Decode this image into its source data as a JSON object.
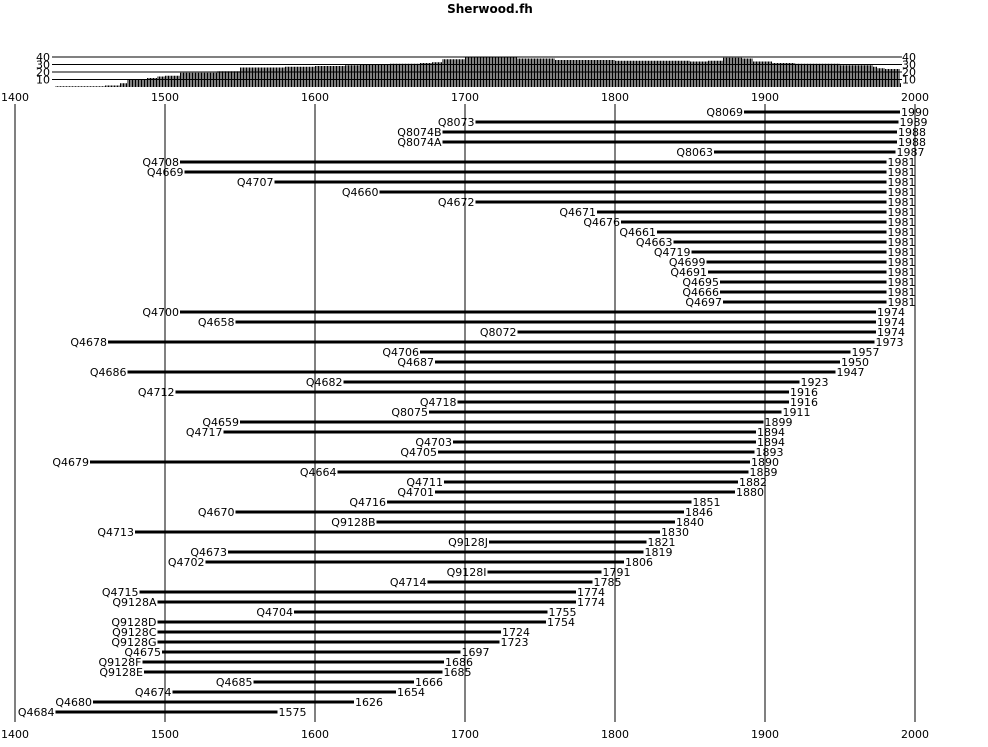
{
  "chart_data": {
    "type": "bar",
    "title": "Sherwood.fh",
    "xlim": [
      1400,
      2000
    ],
    "x_ticks": [
      1400,
      1500,
      1600,
      1700,
      1800,
      1900,
      2000
    ],
    "histogram": {
      "ylim": [
        0,
        40
      ],
      "y_ticks": [
        10,
        20,
        30,
        40
      ],
      "breakpoints": [
        [
          1427,
          1
        ],
        [
          1450,
          1
        ],
        [
          1460,
          2
        ],
        [
          1470,
          5
        ],
        [
          1475,
          10
        ],
        [
          1488,
          12
        ],
        [
          1495,
          14
        ],
        [
          1500,
          15
        ],
        [
          1510,
          19
        ],
        [
          1535,
          21
        ],
        [
          1550,
          26
        ],
        [
          1580,
          27
        ],
        [
          1600,
          28
        ],
        [
          1620,
          29
        ],
        [
          1630,
          30
        ],
        [
          1650,
          31
        ],
        [
          1670,
          32
        ],
        [
          1678,
          33
        ],
        [
          1685,
          37
        ],
        [
          1700,
          40
        ],
        [
          1720,
          40
        ],
        [
          1735,
          38
        ],
        [
          1760,
          36
        ],
        [
          1800,
          35
        ],
        [
          1850,
          34
        ],
        [
          1862,
          35
        ],
        [
          1872,
          39
        ],
        [
          1885,
          38
        ],
        [
          1892,
          34
        ],
        [
          1905,
          32
        ],
        [
          1920,
          31
        ],
        [
          1950,
          29
        ],
        [
          1972,
          27
        ],
        [
          1975,
          25
        ],
        [
          1980,
          24
        ],
        [
          1990,
          5
        ],
        [
          1991,
          0
        ]
      ]
    },
    "series": [
      {
        "label": "Q8069",
        "start": 1886,
        "end": 1990
      },
      {
        "label": "Q8073",
        "start": 1707,
        "end": 1989
      },
      {
        "label": "Q8074B",
        "start": 1685,
        "end": 1988
      },
      {
        "label": "Q8074A",
        "start": 1685,
        "end": 1988
      },
      {
        "label": "Q8063",
        "start": 1866,
        "end": 1987
      },
      {
        "label": "Q4708",
        "start": 1510,
        "end": 1981
      },
      {
        "label": "Q4669",
        "start": 1513,
        "end": 1981
      },
      {
        "label": "Q4707",
        "start": 1573,
        "end": 1981
      },
      {
        "label": "Q4660",
        "start": 1643,
        "end": 1981
      },
      {
        "label": "Q4672",
        "start": 1707,
        "end": 1981
      },
      {
        "label": "Q4671",
        "start": 1788,
        "end": 1981
      },
      {
        "label": "Q4676",
        "start": 1804,
        "end": 1981
      },
      {
        "label": "Q4661",
        "start": 1828,
        "end": 1981
      },
      {
        "label": "Q4663",
        "start": 1839,
        "end": 1981
      },
      {
        "label": "Q4719",
        "start": 1851,
        "end": 1981
      },
      {
        "label": "Q4699",
        "start": 1861,
        "end": 1981
      },
      {
        "label": "Q4691",
        "start": 1862,
        "end": 1981
      },
      {
        "label": "Q4695",
        "start": 1870,
        "end": 1981
      },
      {
        "label": "Q4666",
        "start": 1870,
        "end": 1981
      },
      {
        "label": "Q4697",
        "start": 1872,
        "end": 1981
      },
      {
        "label": "Q4700",
        "start": 1510,
        "end": 1974
      },
      {
        "label": "Q4658",
        "start": 1547,
        "end": 1974
      },
      {
        "label": "Q8072",
        "start": 1735,
        "end": 1974
      },
      {
        "label": "Q4678",
        "start": 1462,
        "end": 1973
      },
      {
        "label": "Q4706",
        "start": 1670,
        "end": 1957
      },
      {
        "label": "Q4687",
        "start": 1680,
        "end": 1950
      },
      {
        "label": "Q4686",
        "start": 1475,
        "end": 1947
      },
      {
        "label": "Q4682",
        "start": 1619,
        "end": 1923
      },
      {
        "label": "Q4712",
        "start": 1507,
        "end": 1916
      },
      {
        "label": "Q4718",
        "start": 1695,
        "end": 1916
      },
      {
        "label": "Q8075",
        "start": 1676,
        "end": 1911
      },
      {
        "label": "Q4659",
        "start": 1550,
        "end": 1899
      },
      {
        "label": "Q4717",
        "start": 1539,
        "end": 1894
      },
      {
        "label": "Q4703",
        "start": 1692,
        "end": 1894
      },
      {
        "label": "Q4705",
        "start": 1682,
        "end": 1893
      },
      {
        "label": "Q4679",
        "start": 1450,
        "end": 1890
      },
      {
        "label": "Q4664",
        "start": 1615,
        "end": 1889
      },
      {
        "label": "Q4711",
        "start": 1686,
        "end": 1882
      },
      {
        "label": "Q4701",
        "start": 1680,
        "end": 1880
      },
      {
        "label": "Q4716",
        "start": 1648,
        "end": 1851
      },
      {
        "label": "Q4670",
        "start": 1547,
        "end": 1846
      },
      {
        "label": "Q9128B",
        "start": 1641,
        "end": 1840
      },
      {
        "label": "Q4713",
        "start": 1480,
        "end": 1830
      },
      {
        "label": "Q9128J",
        "start": 1716,
        "end": 1821
      },
      {
        "label": "Q4673",
        "start": 1542,
        "end": 1819
      },
      {
        "label": "Q4702",
        "start": 1527,
        "end": 1806
      },
      {
        "label": "Q9128I",
        "start": 1715,
        "end": 1791
      },
      {
        "label": "Q4714",
        "start": 1675,
        "end": 1785
      },
      {
        "label": "Q4715",
        "start": 1483,
        "end": 1774
      },
      {
        "label": "Q9128A",
        "start": 1495,
        "end": 1774
      },
      {
        "label": "Q4704",
        "start": 1586,
        "end": 1755
      },
      {
        "label": "Q9128D",
        "start": 1495,
        "end": 1754
      },
      {
        "label": "Q9128C",
        "start": 1495,
        "end": 1724
      },
      {
        "label": "Q9128G",
        "start": 1495,
        "end": 1723
      },
      {
        "label": "Q4675",
        "start": 1498,
        "end": 1697
      },
      {
        "label": "Q9128F",
        "start": 1485,
        "end": 1686
      },
      {
        "label": "Q9128E",
        "start": 1486,
        "end": 1685
      },
      {
        "label": "Q4685",
        "start": 1559,
        "end": 1666
      },
      {
        "label": "Q4674",
        "start": 1505,
        "end": 1654
      },
      {
        "label": "Q4680",
        "start": 1452,
        "end": 1626
      },
      {
        "label": "Q4684",
        "start": 1427,
        "end": 1575
      }
    ]
  }
}
